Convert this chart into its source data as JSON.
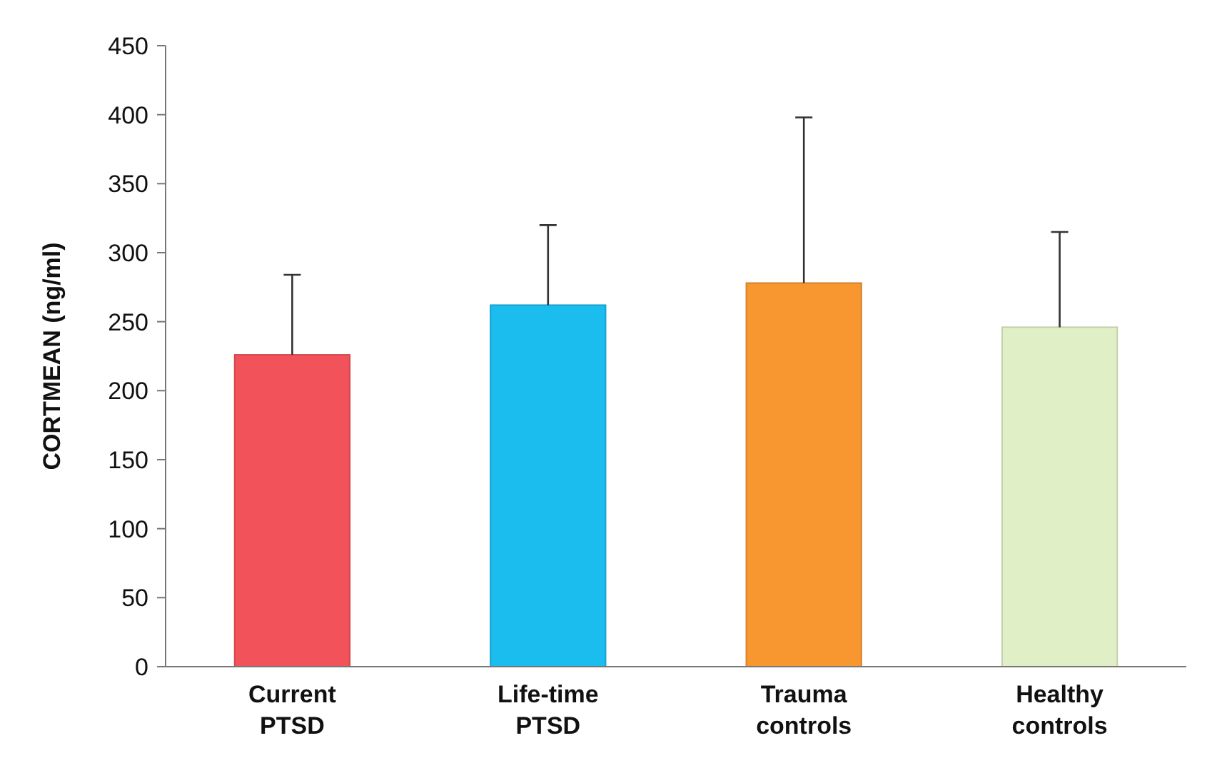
{
  "chart_data": {
    "type": "bar",
    "ylabel": "CORTMEAN (ng/ml)",
    "categories": [
      "Current\nPTSD",
      "Life-time\nPTSD",
      "Trauma\ncontrols",
      "Healthy\ncontrols"
    ],
    "values": [
      226,
      262,
      278,
      246
    ],
    "colors": [
      "#f2535a",
      "#1bbcee",
      "#f8962f",
      "#e1efc6"
    ],
    "errors": [
      [
        226,
        284
      ],
      [
        262,
        320
      ],
      [
        278,
        398
      ],
      [
        246,
        315
      ]
    ],
    "ylim": [
      0,
      450
    ],
    "yticks": [
      0,
      50,
      100,
      150,
      200,
      250,
      300,
      350,
      400,
      450
    ],
    "grid": false
  }
}
